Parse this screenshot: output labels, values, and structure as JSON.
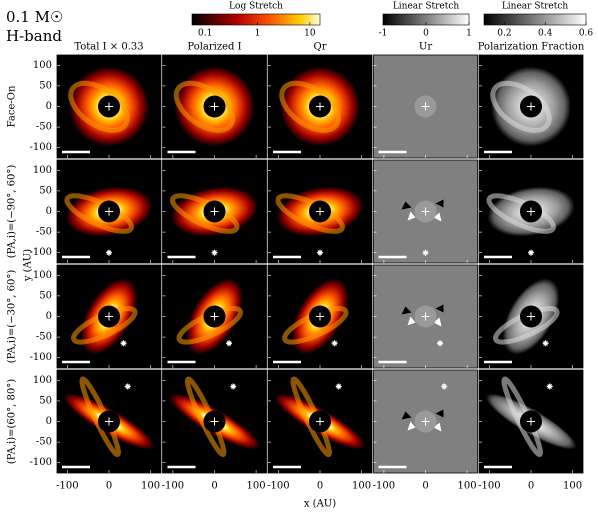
{
  "header": {
    "mass": "0.1 M☉",
    "band": "H-band"
  },
  "colorbars": [
    {
      "title": "Log Stretch",
      "log": true,
      "lim": [
        0.056,
        15.6
      ],
      "ticks": [
        0.1,
        1,
        10
      ]
    },
    {
      "title": "Linear Stretch",
      "log": false,
      "lim": [
        -1,
        1
      ],
      "ticks": [
        -1,
        0,
        1
      ]
    },
    {
      "title": "Linear Stretch",
      "log": false,
      "lim": [
        0.1,
        0.6
      ],
      "ticks": [
        0.2,
        0.4,
        0.6
      ]
    }
  ],
  "columns": [
    "Total I × 0.33",
    "Polarized I",
    "Qr",
    "Ur",
    "Polarization Fraction"
  ],
  "rows": [
    "Face-On",
    "(PA,i)=(−90°, 60°)",
    "(PA,i)=(−30°, 60°)",
    "(PA,i)=(60°, 80°)"
  ],
  "axes": {
    "xlabel": "x (AU)",
    "ylabel": "y (AU)",
    "xlim": [
      -125,
      125
    ],
    "ylim": [
      -125,
      125
    ],
    "xticks": [
      -100,
      0,
      100
    ],
    "yticks": [
      100,
      50,
      0,
      -50,
      -100
    ]
  }
}
